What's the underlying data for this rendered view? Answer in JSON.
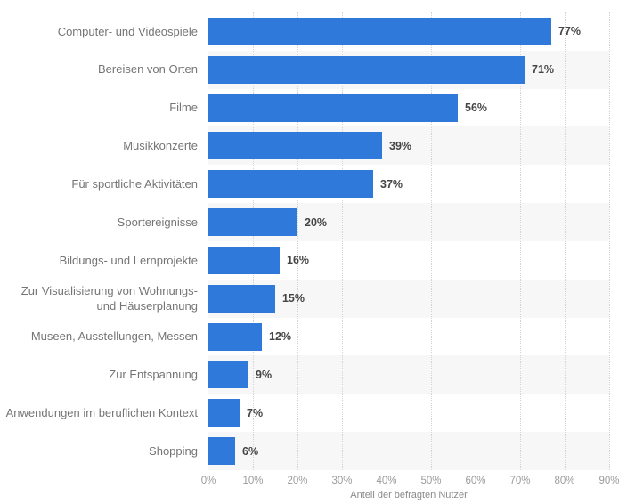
{
  "chart_data": {
    "type": "bar",
    "orientation": "horizontal",
    "title": "",
    "categories": [
      "Computer- und Videospiele",
      "Bereisen von Orten",
      "Filme",
      "Musikkonzerte",
      "Für sportliche Aktivitäten",
      "Sportereignisse",
      "Bildungs- und Lernprojekte",
      "Zur Visualisierung von Wohnungs- und Häuserplanung",
      "Museen, Ausstellungen, Messen",
      "Zur Entspannung",
      "Anwendungen im beruflichen Kontext",
      "Shopping"
    ],
    "values": [
      77,
      71,
      56,
      39,
      37,
      20,
      16,
      15,
      12,
      9,
      7,
      6
    ],
    "value_suffix": "%",
    "xlabel": "Anteil der befragten Nutzer",
    "ylabel": "",
    "x_ticks": [
      "0%",
      "10%",
      "20%",
      "30%",
      "40%",
      "50%",
      "60%",
      "70%",
      "80%",
      "90%"
    ],
    "xlim": [
      0,
      90
    ],
    "grid": "vertical-dotted",
    "legend": "none",
    "colors": {
      "bar": "#2e79d9",
      "row_stripe": "#f7f7f7",
      "gridline": "#d2d2d2",
      "axis_line": "#333333",
      "category_label": "#757575",
      "value_label": "#454545",
      "tick_label": "#9b9b9b",
      "axis_title": "#8a8a8a"
    }
  }
}
